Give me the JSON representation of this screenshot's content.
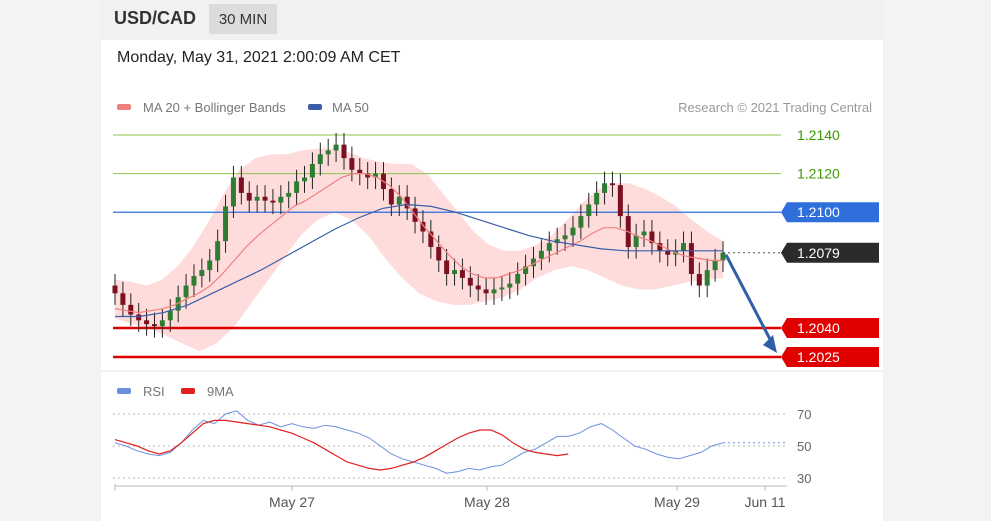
{
  "header": {
    "symbol": "USD/CAD",
    "interval": "30 MIN",
    "datetime": "Monday, May 31, 2021 2:00:09 AM CET"
  },
  "legend": {
    "ma20_label": "MA 20 + Bollinger Bands",
    "ma50_label": "MA 50",
    "copyright": "Research © 2021 Trading Central",
    "rsi_label": "RSI",
    "ma9_label": "9MA"
  },
  "colors": {
    "ma20": "#f08080",
    "band_fill": "#ffd6d6",
    "ma50": "#3a5ea8",
    "up_candle": "#2e7d32",
    "down_candle": "#7a1020",
    "resistance": "#8bc34a",
    "resistance_text": "#3a9a00",
    "pivot": "#2e6fdb",
    "support": "#e00000",
    "last_price": "#2b2b2b",
    "arrow": "#2f5fa8",
    "rsi": "#6b8fdf",
    "rsi_ma": "#e02020"
  },
  "chart_data": [
    {
      "type": "candlestick",
      "title": "USD/CAD",
      "interval": "30 MIN",
      "ylim": [
        1.2018,
        1.2145
      ],
      "x_tick_labels": [
        "May 27",
        "May 28",
        "May 29",
        "Jun 11"
      ],
      "levels": [
        {
          "label": "1.2140",
          "value": 1.214,
          "kind": "resistance"
        },
        {
          "label": "1.2120",
          "value": 1.212,
          "kind": "resistance"
        },
        {
          "label": "1.2100",
          "value": 1.21,
          "kind": "pivot"
        },
        {
          "label": "1.2079",
          "value": 1.2079,
          "kind": "last"
        },
        {
          "label": "1.2040",
          "value": 1.204,
          "kind": "support"
        },
        {
          "label": "1.2025",
          "value": 1.2025,
          "kind": "support"
        }
      ],
      "forecast_arrow": {
        "from": 1.2079,
        "to": 1.2025
      },
      "close_series": [
        1.2058,
        1.2052,
        1.2047,
        1.2044,
        1.2042,
        1.2041,
        1.2044,
        1.2049,
        1.2056,
        1.2062,
        1.2067,
        1.207,
        1.2075,
        1.2085,
        1.2103,
        1.2118,
        1.211,
        1.2106,
        1.2108,
        1.2106,
        1.2105,
        1.2108,
        1.211,
        1.2116,
        1.2118,
        1.2125,
        1.213,
        1.2132,
        1.2135,
        1.2128,
        1.2122,
        1.212,
        1.2118,
        1.212,
        1.2112,
        1.2104,
        1.2108,
        1.2102,
        1.2095,
        1.209,
        1.2082,
        1.2075,
        1.2068,
        1.207,
        1.2066,
        1.2062,
        1.206,
        1.2058,
        1.206,
        1.2061,
        1.2063,
        1.2068,
        1.2072,
        1.2076,
        1.208,
        1.2084,
        1.2086,
        1.2088,
        1.2092,
        1.2098,
        1.2104,
        1.211,
        1.2115,
        1.2114,
        1.2098,
        1.2082,
        1.2088,
        1.209,
        1.2084,
        1.208,
        1.2078,
        1.208,
        1.2084,
        1.2068,
        1.2062,
        1.207,
        1.2075,
        1.2079
      ],
      "ma20_series": [
        1.205,
        1.2049,
        1.2048,
        1.2049,
        1.205,
        1.2052,
        1.2055,
        1.2058,
        1.2062,
        1.2068,
        1.2075,
        1.2082,
        1.2088,
        1.2093,
        1.2098,
        1.2103,
        1.2106,
        1.211,
        1.2114,
        1.2118,
        1.212,
        1.212,
        1.2118,
        1.2114,
        1.2108,
        1.21,
        1.2092,
        1.2085,
        1.2078,
        1.2072,
        1.2068,
        1.2066,
        1.2066,
        1.2068,
        1.207,
        1.2073,
        1.2076,
        1.2079,
        1.2082,
        1.2085,
        1.2089,
        1.2092,
        1.2092,
        1.209,
        1.2087,
        1.2085,
        1.2082,
        1.2079,
        1.2077,
        1.2076,
        1.2075,
        1.2075
      ],
      "upper_band": [
        1.2065,
        1.2064,
        1.2062,
        1.2065,
        1.2072,
        1.2082,
        1.2095,
        1.211,
        1.2122,
        1.2128,
        1.213,
        1.213,
        1.2132,
        1.2133,
        1.2133,
        1.2131,
        1.2128,
        1.2126,
        1.2125,
        1.2125,
        1.212,
        1.211,
        1.21,
        1.209,
        1.2083,
        1.208,
        1.208,
        1.2083,
        1.2088,
        1.2096,
        1.2105,
        1.2112,
        1.2115,
        1.2115,
        1.2112,
        1.2108,
        1.2103,
        1.2096,
        1.209,
        1.2085
      ],
      "lower_band": [
        1.2045,
        1.2042,
        1.204,
        1.2036,
        1.2032,
        1.2028,
        1.2032,
        1.204,
        1.2052,
        1.2064,
        1.2076,
        1.2088,
        1.2096,
        1.21,
        1.2096,
        1.2088,
        1.2076,
        1.2066,
        1.2058,
        1.2054,
        1.2052,
        1.2052,
        1.2054,
        1.2056,
        1.206,
        1.2066,
        1.207,
        1.2072,
        1.207,
        1.2066,
        1.2062,
        1.206,
        1.206,
        1.2062,
        1.2064,
        1.2065,
        1.2066
      ],
      "ma50_series": [
        1.2046,
        1.2046,
        1.2048,
        1.2052,
        1.2058,
        1.2064,
        1.207,
        1.2077,
        1.2084,
        1.2091,
        1.2097,
        1.2102,
        1.2104,
        1.2103,
        1.21,
        1.2096,
        1.2092,
        1.2088,
        1.2085,
        1.2083,
        1.2081,
        1.208,
        1.208,
        1.208,
        1.208,
        1.208
      ]
    },
    {
      "type": "line",
      "title": "RSI",
      "ylim": [
        20,
        80
      ],
      "y_tick_labels": [
        "70",
        "50",
        "30"
      ],
      "reference_lines": [
        70,
        50,
        30
      ],
      "series": [
        {
          "name": "RSI",
          "values": [
            52,
            50,
            47,
            45,
            44,
            46,
            52,
            60,
            66,
            64,
            70,
            72,
            66,
            63,
            65,
            62,
            64,
            62,
            61,
            63,
            62,
            60,
            58,
            55,
            50,
            45,
            42,
            40,
            38,
            36,
            33,
            34,
            36,
            35,
            37,
            38,
            42,
            46,
            48,
            52,
            56,
            56,
            58,
            62,
            64,
            60,
            55,
            50,
            48,
            45,
            43,
            42,
            44,
            46,
            50,
            52
          ]
        },
        {
          "name": "9MA",
          "values": [
            54,
            52,
            50,
            47,
            45,
            47,
            52,
            58,
            64,
            66,
            66,
            65,
            64,
            63,
            62,
            60,
            58,
            55,
            52,
            48,
            44,
            40,
            38,
            36,
            35,
            36,
            38,
            40,
            43,
            47,
            51,
            55,
            58,
            60,
            60,
            57,
            52,
            48,
            46,
            45,
            44,
            45
          ]
        }
      ]
    }
  ]
}
